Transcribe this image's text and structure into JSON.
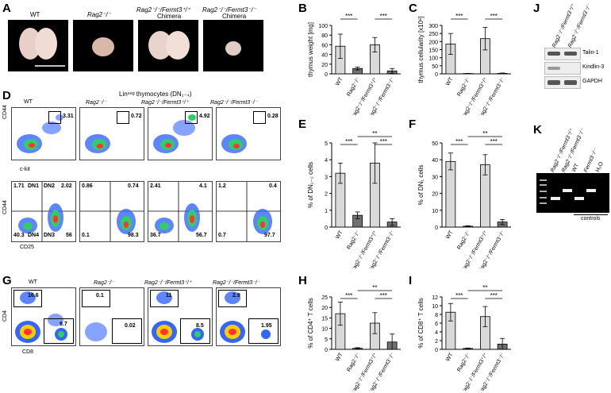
{
  "panels": {
    "A": "A",
    "B": "B",
    "C": "C",
    "D": "D",
    "E": "E",
    "F": "F",
    "G": "G",
    "H": "H",
    "I": "I",
    "J": "J",
    "K": "K"
  },
  "thymus_labels": [
    "WT",
    "Rag2⁻/⁻",
    "Rag2⁻/⁻/Fermt3⁺/⁺\nChimera",
    "Rag2⁻/⁻/Fermt3⁻/⁻\nChimera"
  ],
  "thymus_top": [
    "WT",
    "Rag2⁻/⁻",
    "Rag2⁻/⁻/Fermt3⁺/⁺",
    "Rag2⁻/⁻/Fermt3⁻/⁻"
  ],
  "thymus_sub": "Chimera",
  "genotype_cols": [
    "WT",
    "Rag2⁻/⁻",
    "Rag2⁻/⁻/Fermt3⁺/⁺",
    "Rag2⁻/⁻/Fermt3⁻/⁻"
  ],
  "flowD": {
    "title": "Linⁿᵉᵍ thymocytes (DN₁₋₄)",
    "ckit_vals": [
      "3.31",
      "0.72",
      "4.92",
      "0.28"
    ],
    "y1": "CD44",
    "x1": "c-kit",
    "y2": "CD44",
    "x2": "CD25",
    "quads": [
      {
        "tl": "1.71",
        "tr": "2.02",
        "bl": "40.3",
        "br": "56",
        "labels": true
      },
      {
        "tl": "0.86",
        "tr": "0.74",
        "bl": "0.1",
        "br": "98.3"
      },
      {
        "tl": "2.41",
        "tr": "4.1",
        "bl": "36.7",
        "br": "56.7"
      },
      {
        "tl": "1.2",
        "tr": "0.4",
        "bl": "0.7",
        "br": "97.7"
      }
    ],
    "dn_labels": [
      "DN1",
      "DN2",
      "DN4",
      "DN3"
    ]
  },
  "flowG": {
    "y": "CD4",
    "x": "CD8",
    "cd4": [
      "16.6",
      "0.1",
      "11",
      "2.9"
    ],
    "cd8": [
      "9.7",
      "0.02",
      "8.5",
      "1.95"
    ]
  },
  "western": {
    "lanes": [
      "Rag2⁻/⁻/Fermt3⁺/⁺",
      "Rag2⁻/⁻/Fermt3⁻/⁻"
    ],
    "bands": [
      "Talin-1",
      "Kindlin-3",
      "GAPDH"
    ]
  },
  "pcr": {
    "lanes": [
      "Rag2⁻/⁻/Fermt3⁺/⁺",
      "Rag2⁻/⁻/Fermt3⁻/⁻",
      "WT",
      "Fermt3⁻/⁻",
      "H₂O"
    ],
    "controls_label": "controls"
  },
  "chart_data": [
    {
      "panel": "B",
      "type": "bar",
      "categories": [
        "WT",
        "Rag2⁻/⁻",
        "Rag2⁻/⁻/Fermt3⁺/⁺",
        "Rag2⁻/⁻/Fermt3⁻/⁻"
      ],
      "values": [
        57,
        11,
        60,
        6
      ],
      "errors": [
        25,
        3,
        15,
        5
      ],
      "ylabel": "thymus weight [mg]",
      "ylim": [
        0,
        100
      ],
      "yticks": [
        0,
        20,
        40,
        60,
        80,
        100
      ],
      "sig": [
        "***",
        "***"
      ]
    },
    {
      "panel": "C",
      "type": "bar",
      "categories": [
        "WT",
        "Rag2⁻/⁻",
        "Rag2⁻/⁻/Fermt3⁺/⁺",
        "Rag2⁻/⁻/Fermt3⁻/⁻"
      ],
      "values": [
        185,
        2,
        218,
        3
      ],
      "errors": [
        65,
        1,
        70,
        2
      ],
      "ylabel": "thymus cellularity [x10⁶]",
      "ylim": [
        0,
        300
      ],
      "yticks": [
        0,
        50,
        100,
        150,
        200,
        250,
        300
      ],
      "sig": [
        "***",
        "***"
      ]
    },
    {
      "panel": "E",
      "type": "bar",
      "categories": [
        "WT",
        "Rag2⁻/⁻",
        "Rag2⁻/⁻/Fermt3⁺/⁺",
        "Rag2⁻/⁻/Fermt3⁻/⁻"
      ],
      "values": [
        3.2,
        0.7,
        3.8,
        0.3
      ],
      "errors": [
        0.6,
        0.2,
        1.2,
        0.2
      ],
      "ylabel": "% of DN₁₋₂ cells",
      "ylim": [
        0,
        5
      ],
      "yticks": [
        0,
        1,
        2,
        3,
        4,
        5
      ],
      "sig": [
        "***",
        "**",
        "***"
      ]
    },
    {
      "panel": "F",
      "type": "bar",
      "categories": [
        "WT",
        "Rag2⁻/⁻",
        "Rag2⁻/⁻/Fermt3⁺/⁺",
        "Rag2⁻/⁻/Fermt3⁻/⁻"
      ],
      "values": [
        39,
        0.5,
        37,
        3
      ],
      "errors": [
        5,
        0.3,
        6,
        1.5
      ],
      "ylabel": "% of DN₁ cells",
      "ylim": [
        0,
        50
      ],
      "yticks": [
        0,
        10,
        20,
        30,
        40,
        50
      ],
      "sig": [
        "***",
        "**",
        "***"
      ]
    },
    {
      "panel": "H",
      "type": "bar",
      "categories": [
        "WT",
        "Rag2⁻/⁻",
        "Rag2⁻/⁻/Fermt3⁺/⁺",
        "Rag2⁻/⁻/Fermt3⁻/⁻"
      ],
      "values": [
        17,
        0.5,
        12.5,
        3.5
      ],
      "errors": [
        5.5,
        0.3,
        5,
        3.8
      ],
      "ylabel": "% of CD4⁺ T cells",
      "ylim": [
        0,
        25
      ],
      "yticks": [
        0,
        5,
        10,
        15,
        20,
        25
      ],
      "sig": [
        "***",
        "**",
        "***"
      ]
    },
    {
      "panel": "I",
      "type": "bar",
      "categories": [
        "WT",
        "Rag2⁻/⁻",
        "Rag2⁻/⁻/Fermt3⁺/⁺",
        "Rag2⁻/⁻/Fermt3⁻/⁻"
      ],
      "values": [
        8.5,
        0.2,
        7.5,
        1.2
      ],
      "errors": [
        2,
        0.1,
        2.3,
        1.3
      ],
      "ylabel": "% of CD8⁺ T cells",
      "ylim": [
        0,
        12
      ],
      "yticks": [
        0,
        2,
        4,
        6,
        8,
        10,
        12
      ],
      "sig": [
        "***",
        "**",
        "***"
      ]
    }
  ]
}
